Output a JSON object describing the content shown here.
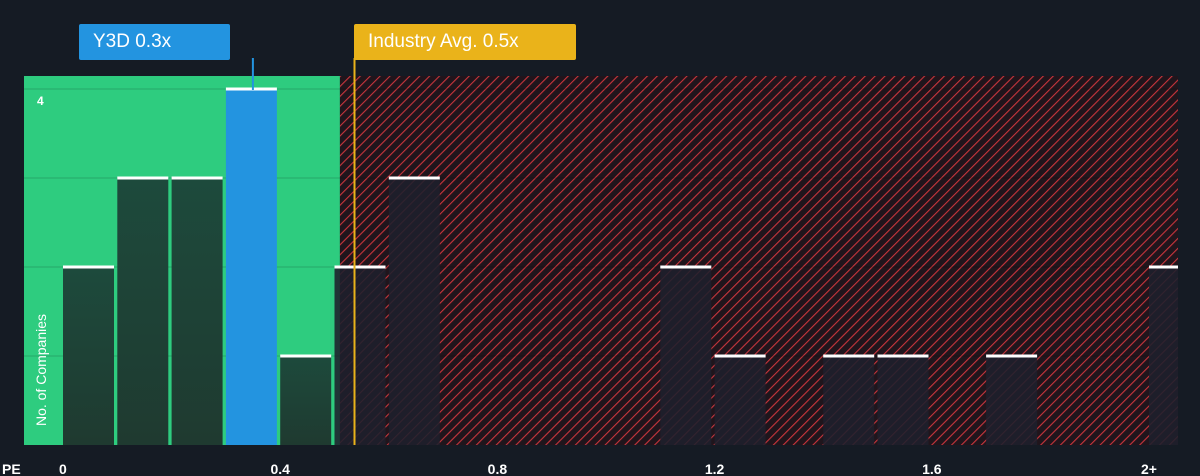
{
  "chart_data": {
    "type": "bar",
    "xlabel": "PE",
    "ylabel": "No. of Companies",
    "x_ticks": [
      "0",
      "0.4",
      "0.8",
      "1.2",
      "1.6",
      "2+"
    ],
    "y_ticks": [
      "4"
    ],
    "xlim": [
      0,
      2
    ],
    "ylim": [
      0,
      4
    ],
    "bins": [
      {
        "x_start": 0.0,
        "count": 2
      },
      {
        "x_start": 0.1,
        "count": 3
      },
      {
        "x_start": 0.2,
        "count": 3
      },
      {
        "x_start": 0.3,
        "count": 4,
        "highlight": true
      },
      {
        "x_start": 0.4,
        "count": 1
      },
      {
        "x_start": 0.5,
        "count": 2
      },
      {
        "x_start": 0.6,
        "count": 3
      },
      {
        "x_start": 1.1,
        "count": 2
      },
      {
        "x_start": 1.2,
        "count": 1
      },
      {
        "x_start": 1.4,
        "count": 1
      },
      {
        "x_start": 1.5,
        "count": 1
      },
      {
        "x_start": 1.7,
        "count": 1
      },
      {
        "x_start": 2.0,
        "count": 2
      }
    ],
    "company": {
      "label": "Y3D 0.3x",
      "value": 0.3
    },
    "industry_avg": {
      "label": "Industry Avg. 0.5x",
      "value": 0.5
    },
    "fair_zone_max": 0.51,
    "colors": {
      "background": "#151b24",
      "fair_zone": "#2ecc7f",
      "overvalued_hatch": "#d9363e",
      "bar_dark": "#1f4a3c",
      "bar_overvalued": "#262530",
      "company": "#2394e0",
      "industry": "#eab31a",
      "cap": "#ffffff"
    }
  }
}
